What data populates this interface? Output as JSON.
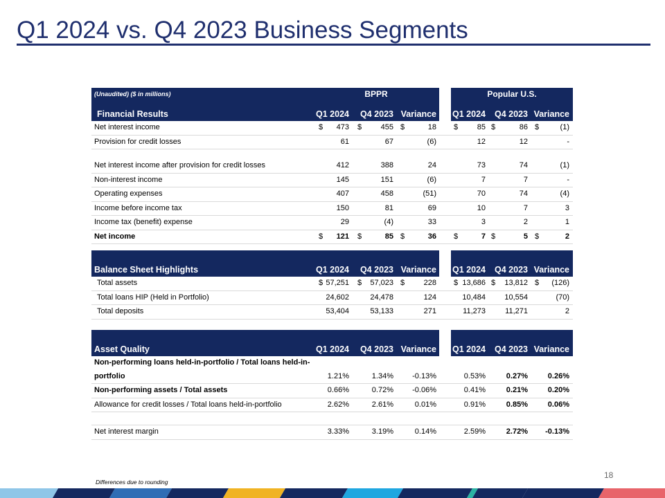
{
  "page": {
    "title": "Q1 2024 vs. Q4 2023 Business Segments",
    "page_number": "18",
    "footnote": "Differences due to rounding"
  },
  "colors": {
    "header_navy": "#14285f",
    "title_blue": "#1f2f6e"
  },
  "financial": {
    "unaudited": "(Unaudited) ($ in millions)",
    "bppr": "BPPR",
    "popular_us": "Popular U.S.",
    "section": "Financial Results",
    "cols": [
      "Q1 2024",
      "Q4 2023",
      "Variance",
      "Q1 2024",
      "Q4 2023",
      "Variance"
    ],
    "rows": [
      {
        "label": "Net interest income",
        "values": [
          "473",
          "455",
          "18",
          "85",
          "86",
          "(1)"
        ],
        "dollar": true
      },
      {
        "label": "Provision for credit losses",
        "values": [
          "61",
          "67",
          "(6)",
          "12",
          "12",
          "-"
        ]
      },
      {
        "label": "Net interest income after provision for credit losses",
        "values": [
          "412",
          "388",
          "24",
          "73",
          "74",
          "(1)"
        ]
      },
      {
        "label": "Non-interest income",
        "values": [
          "145",
          "151",
          "(6)",
          "7",
          "7",
          "-"
        ]
      },
      {
        "label": "Operating expenses",
        "values": [
          "407",
          "458",
          "(51)",
          "70",
          "74",
          "(4)"
        ]
      },
      {
        "label": "Income before income tax",
        "values": [
          "150",
          "81",
          "69",
          "10",
          "7",
          "3"
        ]
      },
      {
        "label": "Income tax (benefit) expense",
        "values": [
          "29",
          "(4)",
          "33",
          "3",
          "2",
          "1"
        ]
      },
      {
        "label": "Net income",
        "values": [
          "121",
          "85",
          "36",
          "7",
          "5",
          "2"
        ],
        "dollar": true
      }
    ]
  },
  "balance": {
    "section": "Balance Sheet Highlights",
    "cols": [
      "Q1 2024",
      "Q4 2023",
      "Variance",
      "Q1 2024",
      "Q4 2023",
      "Variance"
    ],
    "rows": [
      {
        "label": "Total assets",
        "values": [
          "57,251",
          "57,023",
          "228",
          "13,686",
          "13,812",
          "(126)"
        ],
        "dollar": true
      },
      {
        "label": "Total loans HIP (Held in Portfolio)",
        "values": [
          "24,602",
          "24,478",
          "124",
          "10,484",
          "10,554",
          "(70)"
        ]
      },
      {
        "label": "Total deposits",
        "values": [
          "53,404",
          "53,133",
          "271",
          "11,273",
          "11,271",
          "2"
        ]
      }
    ]
  },
  "asset": {
    "section": "Asset Quality",
    "cols": [
      "Q1 2024",
      "Q4 2023",
      "Variance",
      "Q1 2024",
      "Q4 2023",
      "Variance"
    ],
    "rows": [
      {
        "label1": "Non-performing loans held-in-portfolio / Total loans held-in-",
        "label2": "portfolio",
        "values": [
          "1.21%",
          "1.34%",
          "-0.13%",
          "0.53%",
          "0.27%",
          "0.26%"
        ]
      },
      {
        "label": "Non-performing assets / Total assets",
        "values": [
          "0.66%",
          "0.72%",
          "-0.06%",
          "0.41%",
          "0.21%",
          "0.20%"
        ]
      },
      {
        "label": "Allowance for credit losses / Total loans held-in-portfolio",
        "values": [
          "2.62%",
          "2.61%",
          "0.01%",
          "0.91%",
          "0.85%",
          "0.06%"
        ]
      },
      {
        "label": "Net interest margin",
        "values": [
          "3.33%",
          "3.19%",
          "0.14%",
          "2.59%",
          "2.72%",
          "-0.13%"
        ]
      }
    ]
  }
}
